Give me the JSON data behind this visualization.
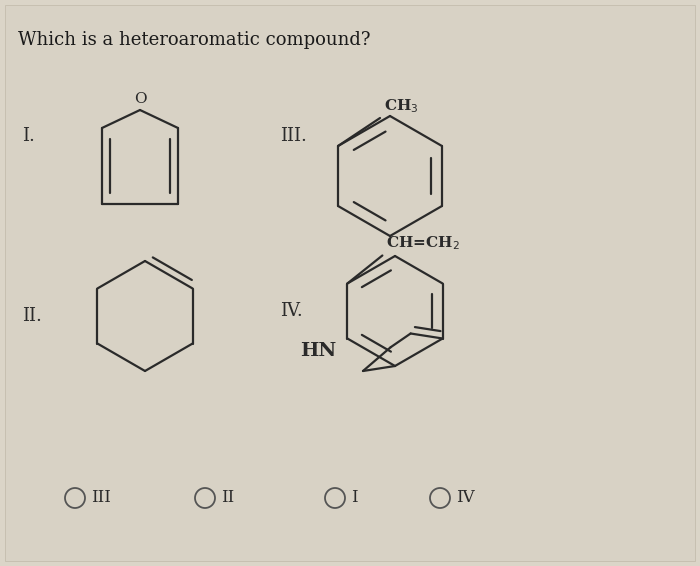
{
  "title": "Which is a heteroaromatic compound?",
  "title_fontsize": 13,
  "background_color": "#dbd5c8",
  "text_color": "#1a1a1a",
  "radio_options": [
    "III",
    "II",
    "I",
    "IV"
  ],
  "line_color": "#2a2a2a",
  "lw": 1.6
}
